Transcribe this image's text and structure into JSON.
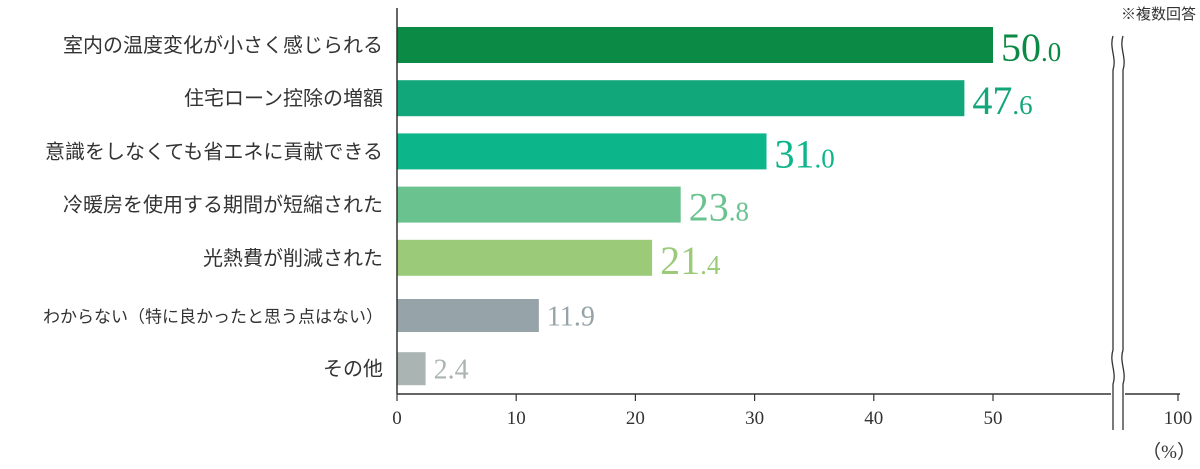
{
  "chart_data": {
    "type": "bar",
    "orientation": "horizontal",
    "categories": [
      "室内の温度変化が小さく感じられる",
      "住宅ローン控除の増額",
      "意識をしなくても省エネに貢献できる",
      "冷暖房を使用する期間が短縮された",
      "光熱費が削減された",
      "わからない（特に良かったと思う点はない）",
      "その他"
    ],
    "values": [
      50.0,
      47.6,
      31.0,
      23.8,
      21.4,
      11.9,
      2.4
    ],
    "value_labels": [
      {
        "int": "50",
        "dec": ".0"
      },
      {
        "int": "47",
        "dec": ".6"
      },
      {
        "int": "31",
        "dec": ".0"
      },
      {
        "int": "23",
        "dec": ".8"
      },
      {
        "int": "21",
        "dec": ".4"
      },
      {
        "int": "11",
        "dec": ".9"
      },
      {
        "int": "2",
        "dec": ".4"
      }
    ],
    "colors": [
      "#0a8a45",
      "#12a67b",
      "#0db58a",
      "#6ac28f",
      "#9bcb79",
      "#96a3a8",
      "#aab5b3"
    ],
    "label_colors": [
      "#0a8a45",
      "#12a67b",
      "#0db58a",
      "#6ac28f",
      "#9bcb79",
      "#96a3a8",
      "#aab5b3"
    ],
    "x_ticks": [
      0,
      10,
      20,
      30,
      40,
      50,
      100
    ],
    "xlim": [
      0,
      100
    ],
    "axis_break": "between 50 and 100",
    "unit": "（%）",
    "note": "※複数回答"
  }
}
